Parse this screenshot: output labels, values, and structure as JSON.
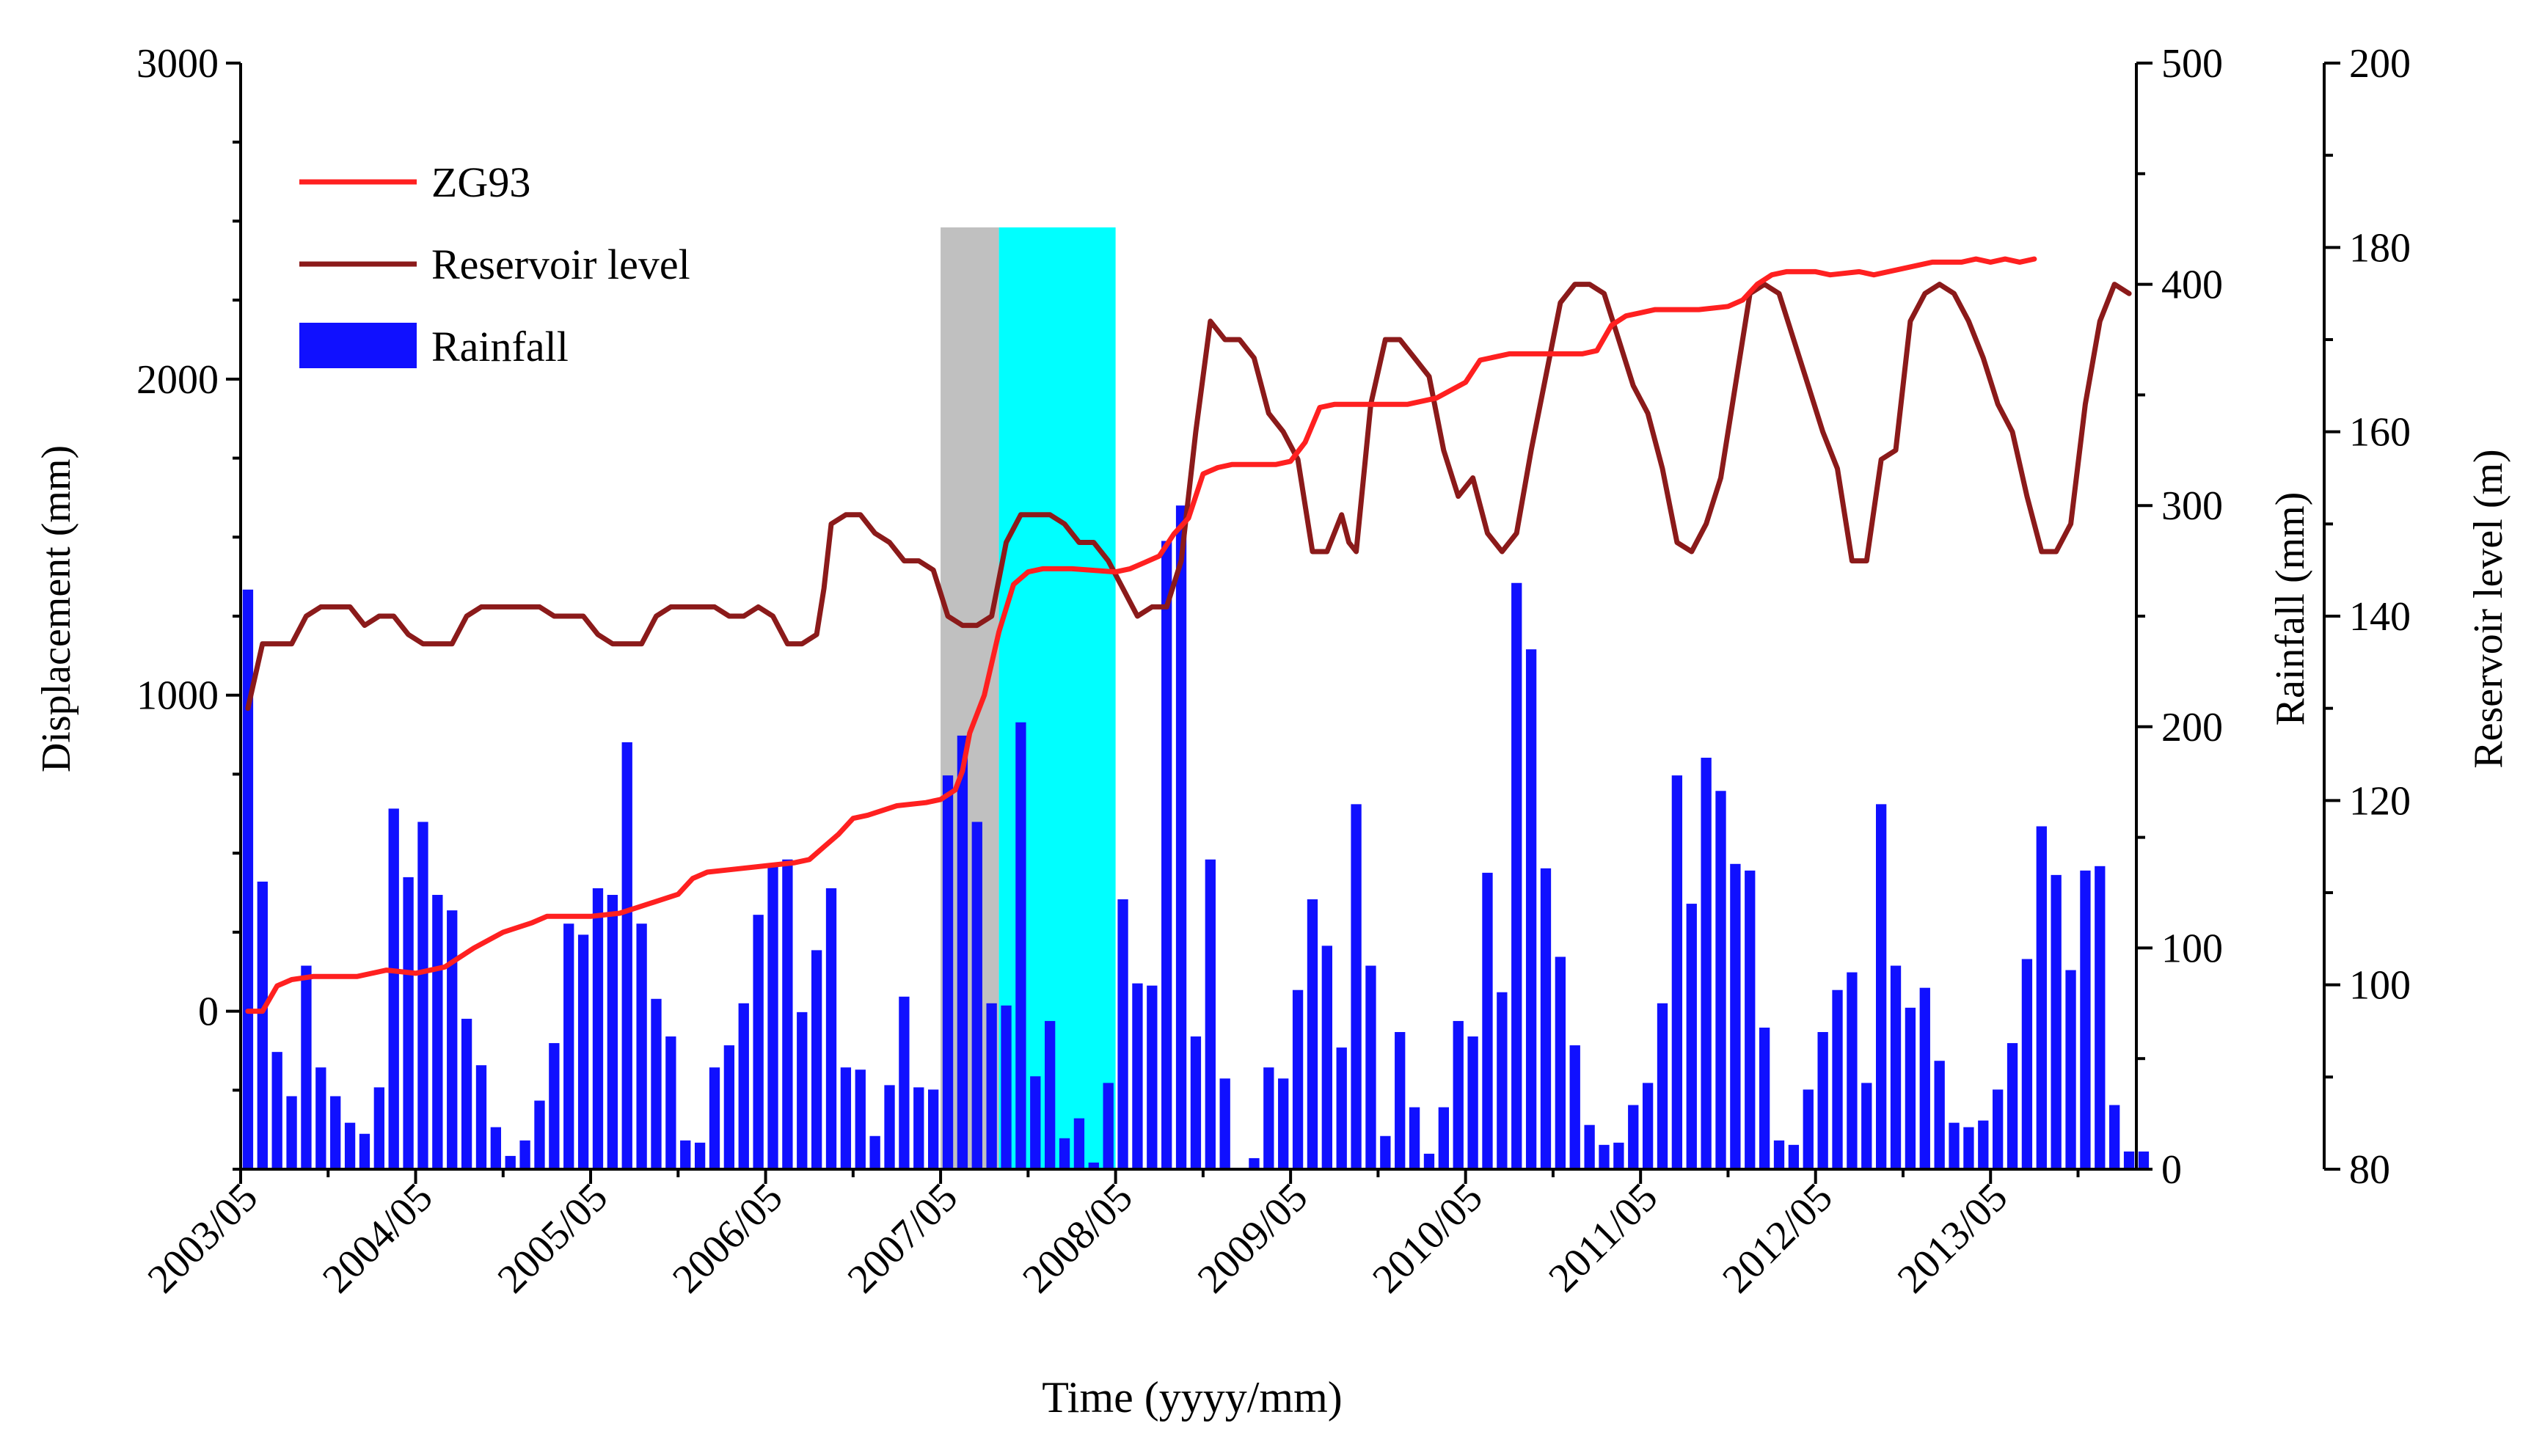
{
  "chart_data": {
    "type": "bar+line",
    "title": "",
    "xlabel": "Time (yyyy/mm)",
    "x_tick_labels": [
      "2003/05",
      "2004/05",
      "2005/05",
      "2006/05",
      "2007/05",
      "2008/05",
      "2009/05",
      "2010/05",
      "2011/05",
      "2012/05",
      "2013/05"
    ],
    "xlim_months": [
      0,
      130
    ],
    "axes": {
      "displacement": {
        "label": "Displacement (mm)",
        "range": [
          -500,
          3000
        ],
        "ticks": [
          0,
          1000,
          2000,
          3000
        ]
      },
      "rainfall": {
        "label": "Rainfall (mm)",
        "range": [
          0,
          500
        ],
        "ticks": [
          0,
          100,
          200,
          300,
          400,
          500
        ]
      },
      "reservoir": {
        "label": "Reservoir level (m)",
        "range": [
          80,
          200
        ],
        "ticks": [
          80,
          100,
          120,
          140,
          160,
          180,
          200
        ]
      }
    },
    "shaded_periods": [
      {
        "name": "gray-period",
        "start_month": 48,
        "end_month": 52,
        "top_displacement": 2480,
        "color": "#c0c0c0"
      },
      {
        "name": "cyan-period",
        "start_month": 52,
        "end_month": 60,
        "top_displacement": 2480,
        "color": "#00ffff"
      }
    ],
    "legend": [
      {
        "label": "ZG93",
        "kind": "line",
        "color": "#ff2020"
      },
      {
        "label": "Reservoir level",
        "kind": "line",
        "color": "#8b1a1a"
      },
      {
        "label": "Rainfall",
        "kind": "bar",
        "color": "#1010ff"
      }
    ],
    "series": [
      {
        "name": "Rainfall",
        "axis": "rainfall",
        "color": "#1010ff",
        "x_start_month": 1,
        "values": [
          262,
          130,
          53,
          33,
          92,
          46,
          33,
          21,
          16,
          37,
          163,
          132,
          157,
          124,
          117,
          68,
          47,
          19,
          6,
          13,
          31,
          57,
          111,
          106,
          127,
          124,
          193,
          111,
          77,
          60,
          13,
          12,
          46,
          56,
          75,
          115,
          138,
          140,
          71,
          99,
          127,
          46,
          45,
          15,
          38,
          78,
          37,
          36,
          178,
          196,
          157,
          75,
          74,
          202,
          42,
          67,
          14,
          23,
          3,
          39,
          122,
          84,
          83,
          284,
          300,
          60,
          140,
          41,
          0,
          5,
          46,
          41,
          81,
          122,
          101,
          55,
          165,
          92,
          15,
          62,
          28,
          7,
          28,
          67,
          60,
          134,
          80,
          265,
          235,
          136,
          96,
          56,
          20,
          11,
          12,
          29,
          39,
          75,
          178,
          120,
          186,
          171,
          138,
          135,
          64,
          13,
          11,
          36,
          62,
          81,
          89,
          39,
          165,
          92,
          73,
          82,
          49,
          21,
          19,
          22,
          36,
          57,
          95,
          155,
          133,
          90,
          135,
          137,
          29,
          8,
          8
        ]
      },
      {
        "name": "ZG93",
        "axis": "displacement",
        "color": "#ff2020",
        "points": [
          [
            0.5,
            0
          ],
          [
            1.5,
            0
          ],
          [
            2.5,
            80
          ],
          [
            3.5,
            100
          ],
          [
            5,
            110
          ],
          [
            8,
            110
          ],
          [
            10,
            130
          ],
          [
            12,
            120
          ],
          [
            14,
            140
          ],
          [
            16,
            200
          ],
          [
            18,
            250
          ],
          [
            20,
            280
          ],
          [
            21,
            300
          ],
          [
            24,
            300
          ],
          [
            26,
            310
          ],
          [
            28,
            340
          ],
          [
            30,
            370
          ],
          [
            31,
            420
          ],
          [
            32,
            440
          ],
          [
            34,
            450
          ],
          [
            36,
            460
          ],
          [
            38,
            470
          ],
          [
            39,
            480
          ],
          [
            40,
            520
          ],
          [
            41,
            560
          ],
          [
            42,
            610
          ],
          [
            43,
            620
          ],
          [
            45,
            650
          ],
          [
            47,
            660
          ],
          [
            48,
            670
          ],
          [
            49,
            700
          ],
          [
            49.5,
            760
          ],
          [
            50,
            880
          ],
          [
            51,
            1000
          ],
          [
            52,
            1200
          ],
          [
            53,
            1350
          ],
          [
            54,
            1390
          ],
          [
            55,
            1400
          ],
          [
            57,
            1400
          ],
          [
            60,
            1390
          ],
          [
            61,
            1400
          ],
          [
            62,
            1420
          ],
          [
            63,
            1440
          ],
          [
            64,
            1510
          ],
          [
            65,
            1560
          ],
          [
            66,
            1700
          ],
          [
            67,
            1720
          ],
          [
            68,
            1730
          ],
          [
            69,
            1730
          ],
          [
            70,
            1730
          ],
          [
            71,
            1730
          ],
          [
            72,
            1740
          ],
          [
            73,
            1800
          ],
          [
            74,
            1910
          ],
          [
            75,
            1920
          ],
          [
            78,
            1920
          ],
          [
            80,
            1920
          ],
          [
            82,
            1940
          ],
          [
            84,
            1990
          ],
          [
            85,
            2060
          ],
          [
            87,
            2080
          ],
          [
            88,
            2080
          ],
          [
            89,
            2080
          ],
          [
            90,
            2080
          ],
          [
            91,
            2080
          ],
          [
            92,
            2080
          ],
          [
            93,
            2090
          ],
          [
            94,
            2170
          ],
          [
            95,
            2200
          ],
          [
            96,
            2210
          ],
          [
            97,
            2220
          ],
          [
            100,
            2220
          ],
          [
            102,
            2230
          ],
          [
            103,
            2250
          ],
          [
            104,
            2300
          ],
          [
            105,
            2330
          ],
          [
            106,
            2340
          ],
          [
            108,
            2340
          ],
          [
            109,
            2330
          ],
          [
            111,
            2340
          ],
          [
            112,
            2330
          ],
          [
            114,
            2350
          ],
          [
            116,
            2370
          ],
          [
            118,
            2370
          ],
          [
            119,
            2380
          ],
          [
            120,
            2370
          ],
          [
            121,
            2380
          ],
          [
            122,
            2370
          ],
          [
            123,
            2380
          ]
        ]
      },
      {
        "name": "Reservoir level",
        "axis": "reservoir",
        "color": "#8b1a1a",
        "points": [
          [
            0.5,
            130
          ],
          [
            1.5,
            137
          ],
          [
            2.5,
            137
          ],
          [
            3.5,
            137
          ],
          [
            4.5,
            140
          ],
          [
            5.5,
            141
          ],
          [
            6.5,
            141
          ],
          [
            7.5,
            141
          ],
          [
            8.5,
            139
          ],
          [
            9.5,
            140
          ],
          [
            10.5,
            140
          ],
          [
            11.5,
            138
          ],
          [
            12.5,
            137
          ],
          [
            13.5,
            137
          ],
          [
            14.5,
            137
          ],
          [
            15.5,
            140
          ],
          [
            16.5,
            141
          ],
          [
            17.5,
            141
          ],
          [
            18.5,
            141
          ],
          [
            19.5,
            141
          ],
          [
            20.5,
            141
          ],
          [
            21.5,
            140
          ],
          [
            22.5,
            140
          ],
          [
            23.5,
            140
          ],
          [
            24.5,
            138
          ],
          [
            25.5,
            137
          ],
          [
            26.5,
            137
          ],
          [
            27.5,
            137
          ],
          [
            28.5,
            140
          ],
          [
            29.5,
            141
          ],
          [
            30.5,
            141
          ],
          [
            31.5,
            141
          ],
          [
            32.5,
            141
          ],
          [
            33.5,
            140
          ],
          [
            34.5,
            140
          ],
          [
            35.5,
            141
          ],
          [
            36.5,
            140
          ],
          [
            37.5,
            137
          ],
          [
            38.5,
            137
          ],
          [
            39.5,
            138
          ],
          [
            40,
            143
          ],
          [
            40.5,
            150
          ],
          [
            41.5,
            151
          ],
          [
            42.5,
            151
          ],
          [
            43.5,
            149
          ],
          [
            44.5,
            148
          ],
          [
            45.5,
            146
          ],
          [
            46.5,
            146
          ],
          [
            47.5,
            145
          ],
          [
            48.5,
            140
          ],
          [
            49.5,
            139
          ],
          [
            50.5,
            139
          ],
          [
            51.5,
            140
          ],
          [
            52.5,
            148
          ],
          [
            53.5,
            151
          ],
          [
            54.5,
            151
          ],
          [
            55.5,
            151
          ],
          [
            56.5,
            150
          ],
          [
            57.5,
            148
          ],
          [
            58.5,
            148
          ],
          [
            59.5,
            146
          ],
          [
            60.5,
            143
          ],
          [
            61.5,
            140
          ],
          [
            62.5,
            141
          ],
          [
            63.5,
            141
          ],
          [
            64.5,
            146
          ],
          [
            65.5,
            160
          ],
          [
            66.5,
            172
          ],
          [
            67.5,
            170
          ],
          [
            68.5,
            170
          ],
          [
            69.5,
            168
          ],
          [
            70.5,
            162
          ],
          [
            71.5,
            160
          ],
          [
            72.5,
            157
          ],
          [
            73.5,
            147
          ],
          [
            74.5,
            147
          ],
          [
            75.5,
            151
          ],
          [
            76,
            148
          ],
          [
            76.5,
            147
          ],
          [
            77.5,
            163
          ],
          [
            78.5,
            170
          ],
          [
            79.5,
            170
          ],
          [
            80.5,
            168
          ],
          [
            81.5,
            166
          ],
          [
            82.5,
            158
          ],
          [
            83.5,
            153
          ],
          [
            84.5,
            155
          ],
          [
            85.5,
            149
          ],
          [
            86.5,
            147
          ],
          [
            87.5,
            149
          ],
          [
            88.5,
            158
          ],
          [
            89.5,
            166
          ],
          [
            90.5,
            174
          ],
          [
            91.5,
            176
          ],
          [
            92.5,
            176
          ],
          [
            93.5,
            175
          ],
          [
            94.5,
            170
          ],
          [
            95.5,
            165
          ],
          [
            96.5,
            162
          ],
          [
            97.5,
            156
          ],
          [
            98.5,
            148
          ],
          [
            99.5,
            147
          ],
          [
            100.5,
            150
          ],
          [
            101.5,
            155
          ],
          [
            102.5,
            165
          ],
          [
            103.5,
            175
          ],
          [
            104.5,
            176
          ],
          [
            105.5,
            175
          ],
          [
            106.5,
            170
          ],
          [
            107.5,
            165
          ],
          [
            108.5,
            160
          ],
          [
            109.5,
            156
          ],
          [
            110.5,
            146
          ],
          [
            111.5,
            146
          ],
          [
            112.5,
            157
          ],
          [
            113.5,
            158
          ],
          [
            114.5,
            172
          ],
          [
            115.5,
            175
          ],
          [
            116.5,
            176
          ],
          [
            117.5,
            175
          ],
          [
            118.5,
            172
          ],
          [
            119.5,
            168
          ],
          [
            120.5,
            163
          ],
          [
            121.5,
            160
          ],
          [
            122.5,
            153
          ],
          [
            123.5,
            147
          ],
          [
            124.5,
            147
          ],
          [
            125.5,
            150
          ],
          [
            126.5,
            163
          ],
          [
            127.5,
            172
          ],
          [
            128.5,
            176
          ],
          [
            129.5,
            175
          ]
        ]
      }
    ]
  }
}
